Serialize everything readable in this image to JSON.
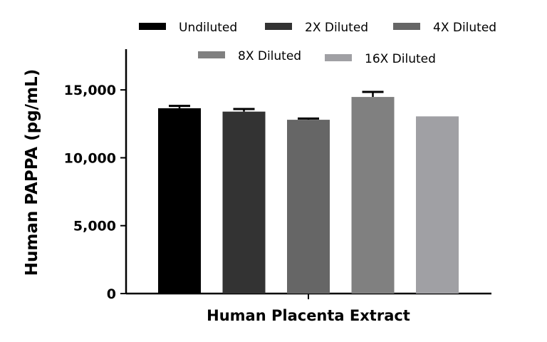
{
  "chart_data": {
    "type": "bar",
    "xlabel": "Human Placenta Extract",
    "ylabel": "Human PAPPA (pg/mL)",
    "ylim": [
      0,
      18000
    ],
    "yticks": [
      0,
      5000,
      10000,
      15000
    ],
    "ytick_labels": [
      "0",
      "5,000",
      "10,000",
      "15,000"
    ],
    "grid": false,
    "legend_placement": "top",
    "series": [
      {
        "name": "Undiluted",
        "value": 13650,
        "error": 170,
        "color": "#000000"
      },
      {
        "name": "2X Diluted",
        "value": 13400,
        "error": 190,
        "color": "#333333"
      },
      {
        "name": "4X Diluted",
        "value": 12800,
        "error": 90,
        "color": "#666666"
      },
      {
        "name": "8X Diluted",
        "value": 14480,
        "error": 370,
        "color": "#808080"
      },
      {
        "name": "16X Diluted",
        "value": 13050,
        "error": 0,
        "color": "#a0a0a4"
      }
    ]
  }
}
